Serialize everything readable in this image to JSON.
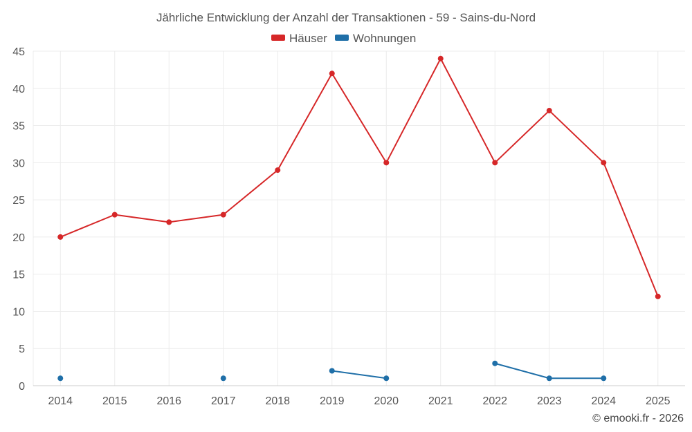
{
  "chart_data": {
    "type": "line",
    "title": "Jährliche Entwicklung der Anzahl der Transaktionen - 59 - Sains-du-Nord",
    "categories": [
      "2014",
      "2015",
      "2016",
      "2017",
      "2018",
      "2019",
      "2020",
      "2021",
      "2022",
      "2023",
      "2024",
      "2025"
    ],
    "ylim": [
      0,
      45
    ],
    "yticks": [
      0,
      5,
      10,
      15,
      20,
      25,
      30,
      35,
      40,
      45
    ],
    "grid": true,
    "legend_position": "top-center",
    "series": [
      {
        "name": "Häuser",
        "color": "#d62728",
        "values": [
          20,
          23,
          22,
          23,
          29,
          42,
          30,
          44,
          30,
          37,
          30,
          12
        ]
      },
      {
        "name": "Wohnungen",
        "color": "#1f6fa8",
        "values": [
          1,
          null,
          null,
          1,
          null,
          2,
          1,
          null,
          3,
          1,
          1,
          null
        ]
      }
    ]
  },
  "credit": "© emooki.fr - 2026"
}
